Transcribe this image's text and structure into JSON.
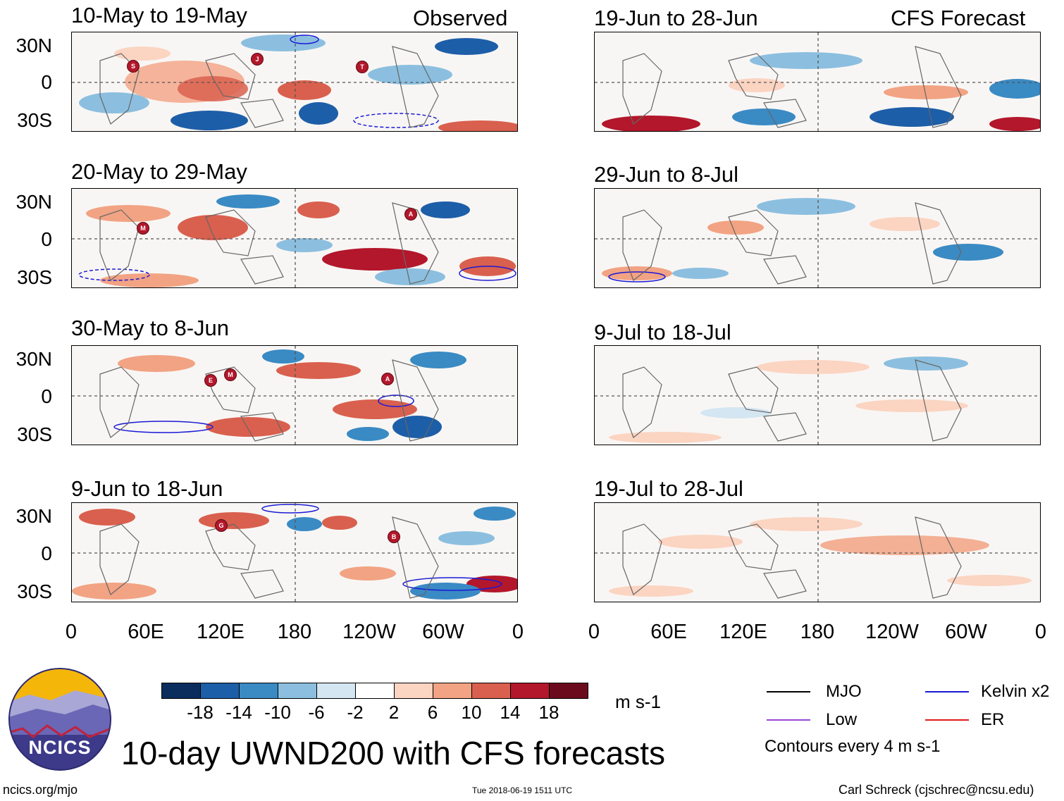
{
  "header": {
    "observed_label": "Observed",
    "forecast_label": "CFS Forecast"
  },
  "panels": {
    "observed": [
      {
        "title": "10-May to 19-May",
        "storms": [
          "S",
          "J",
          "T"
        ]
      },
      {
        "title": "20-May to 29-May",
        "storms": [
          "M",
          "A"
        ]
      },
      {
        "title": "30-May to 8-Jun",
        "storms": [
          "E",
          "M",
          "A"
        ]
      },
      {
        "title": "9-Jun to 18-Jun",
        "storms": [
          "G",
          "B"
        ]
      }
    ],
    "forecast": [
      {
        "title": "19-Jun to 28-Jun"
      },
      {
        "title": "29-Jun to 8-Jul"
      },
      {
        "title": "9-Jul to 18-Jul"
      },
      {
        "title": "19-Jul to 28-Jul"
      }
    ]
  },
  "axes": {
    "y_ticks": [
      "30N",
      "0",
      "30S"
    ],
    "x_ticks": [
      "0",
      "60E",
      "120E",
      "180",
      "120W",
      "60W",
      "0"
    ]
  },
  "colorbar": {
    "colors": [
      "#0a2d5e",
      "#1d5ea8",
      "#3a8ac4",
      "#8cbfdf",
      "#d3e6f2",
      "#ffffff",
      "#fbd4c2",
      "#f2a383",
      "#d9604e",
      "#b3172b",
      "#6b0a1c"
    ],
    "labels": [
      "-18",
      "-14",
      "-10",
      "-6",
      "-2",
      "2",
      "6",
      "10",
      "14",
      "18"
    ],
    "unit": "m s-1"
  },
  "legend": {
    "items": [
      {
        "label": "MJO",
        "color": "#000000"
      },
      {
        "label": "Kelvin x2",
        "color": "#1a1ad6"
      },
      {
        "label": "Low",
        "color": "#9b45d6"
      },
      {
        "label": "ER",
        "color": "#e01b1b"
      }
    ],
    "contour_note": "Contours every 4 m s-1"
  },
  "logo": {
    "text": "NCICS"
  },
  "footer": {
    "title": "10-day UWND200 with CFS forecasts",
    "url": "ncics.org/mjo",
    "timestamp": "Tue 2018-06-19 1511 UTC",
    "credit": "Carl Schreck (cjschrec@ncsu.edu)"
  }
}
